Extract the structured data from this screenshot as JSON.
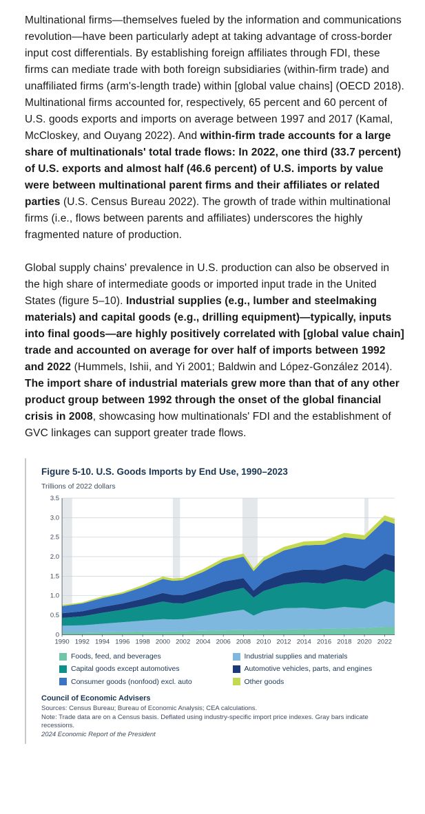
{
  "paragraphs": {
    "p1": {
      "seg1": "Multinational firms—themselves fueled by the information and communications revolution—have been particularly adept at taking advantage of cross-border input cost differentials. By establishing foreign affiliates through FDI, these firms can mediate trade with both foreign subsidiaries (within-firm trade) and unaffiliated firms (arm's-length trade) within [global value chains] (OECD 2018). Multinational firms accounted for, respectively, 65 percent and 60 percent of U.S. goods exports and imports on average between 1997 and 2017 (Kamal, McCloskey, and Ouyang 2022). And ",
      "bold1": "within-firm trade accounts for a large share of multinationals' total trade flows: In 2022, one third (33.7 percent) of U.S. exports and almost half (46.6 percent) of U.S. imports by value were between multinational parent firms and their affiliates or related parties",
      "seg2": " (U.S. Census Bureau 2022). The growth of trade within multinational firms (i.e., flows between parents and affiliates) underscores the highly fragmented nature of production."
    },
    "p2": {
      "seg1": "Global supply chains' prevalence in U.S. production can also be observed in the high share of intermediate goods or imported input trade in the United States (figure 5–10). ",
      "bold1": "Industrial supplies (e.g., lumber and steelmaking materials) and capital goods (e.g., drilling equipment)—typically, inputs into final goods—are highly positively correlated with [global value chain] trade and accounted on average for over half of imports between 1992 and 2022",
      "seg2": " (Hummels, Ishii, and Yi 2001; Baldwin and López-González 2014). ",
      "bold2": "The import share of industrial materials grew more than that of any other product group between 1992 through the onset of the global financial crisis in 2008",
      "seg3": ", showcasing how multinationals' FDI and the establishment of GVC linkages can support greater trade flows."
    }
  },
  "figure": {
    "title": "Figure 5-10. U.S. Goods Imports by End Use, 1990–2023",
    "subtitle": "Trillions of 2022 dollars",
    "council": "Council of Economic Advisers",
    "sources": "Sources: Census Bureau; Bureau of Economic Analysis; CEA calculations.",
    "note": "Note: Trade data are on a Census basis. Deflated using industry-specific import price indexes. Gray bars indicate recessions.",
    "report": "2024 Economic Report of the President",
    "y_axis": {
      "min": 0,
      "max": 3.5,
      "step": 0.5,
      "ticks": [
        "0",
        "0.5",
        "1.0",
        "1.5",
        "2.0",
        "2.5",
        "3.0",
        "3.5"
      ]
    },
    "x_axis": {
      "min": 1990,
      "max": 2023,
      "tick_labels": [
        "1990",
        "1992",
        "1994",
        "1996",
        "1998",
        "2000",
        "2002",
        "2004",
        "2006",
        "2008",
        "2010",
        "2012",
        "2014",
        "2016",
        "2018",
        "2020",
        "2022"
      ]
    },
    "colors": {
      "foods": "#6fc7a7",
      "industrial": "#7fb8de",
      "capital": "#0f8f8a",
      "automotive": "#1a3a7a",
      "consumer": "#3a74c4",
      "other": "#c4d94f",
      "grid": "#c7d0d8",
      "recession": "#e4e8eb",
      "axis": "#3d4b5c",
      "plot_bg": "#ffffff"
    },
    "legend": [
      {
        "key": "foods",
        "label": "Foods, feed, and beverages"
      },
      {
        "key": "industrial",
        "label": "Industrial supplies and materials"
      },
      {
        "key": "capital",
        "label": "Capital goods except automotives"
      },
      {
        "key": "automotive",
        "label": "Automotive vehicles, parts, and engines"
      },
      {
        "key": "consumer",
        "label": "Consumer goods (nonfood) excl. auto"
      },
      {
        "key": "other",
        "label": "Other goods"
      }
    ],
    "recessions": [
      [
        1990,
        1991
      ],
      [
        2001,
        2001.7
      ],
      [
        2007.9,
        2009.4
      ],
      [
        2020,
        2020.4
      ]
    ],
    "series": {
      "years": [
        1990,
        1992,
        1994,
        1996,
        1998,
        2000,
        2001,
        2002,
        2004,
        2006,
        2008,
        2009,
        2010,
        2012,
        2014,
        2016,
        2018,
        2020,
        2022,
        2023
      ],
      "foods": [
        0.05,
        0.05,
        0.06,
        0.07,
        0.08,
        0.08,
        0.08,
        0.09,
        0.1,
        0.11,
        0.12,
        0.11,
        0.12,
        0.13,
        0.14,
        0.15,
        0.16,
        0.17,
        0.2,
        0.2
      ],
      "industrial": [
        0.18,
        0.19,
        0.22,
        0.25,
        0.28,
        0.32,
        0.31,
        0.31,
        0.38,
        0.46,
        0.52,
        0.38,
        0.48,
        0.55,
        0.55,
        0.5,
        0.55,
        0.5,
        0.66,
        0.6
      ],
      "capital": [
        0.2,
        0.23,
        0.28,
        0.32,
        0.38,
        0.45,
        0.42,
        0.4,
        0.45,
        0.52,
        0.56,
        0.46,
        0.52,
        0.6,
        0.65,
        0.66,
        0.72,
        0.7,
        0.82,
        0.8
      ],
      "automotive": [
        0.12,
        0.13,
        0.15,
        0.16,
        0.18,
        0.22,
        0.21,
        0.22,
        0.24,
        0.27,
        0.25,
        0.18,
        0.24,
        0.3,
        0.33,
        0.35,
        0.37,
        0.33,
        0.4,
        0.42
      ],
      "consumer": [
        0.18,
        0.2,
        0.23,
        0.25,
        0.3,
        0.36,
        0.36,
        0.38,
        0.44,
        0.52,
        0.55,
        0.5,
        0.54,
        0.58,
        0.62,
        0.65,
        0.7,
        0.74,
        0.85,
        0.82
      ],
      "other": [
        0.03,
        0.03,
        0.04,
        0.04,
        0.05,
        0.06,
        0.06,
        0.06,
        0.07,
        0.08,
        0.08,
        0.07,
        0.08,
        0.09,
        0.1,
        0.1,
        0.11,
        0.11,
        0.13,
        0.13
      ]
    }
  }
}
